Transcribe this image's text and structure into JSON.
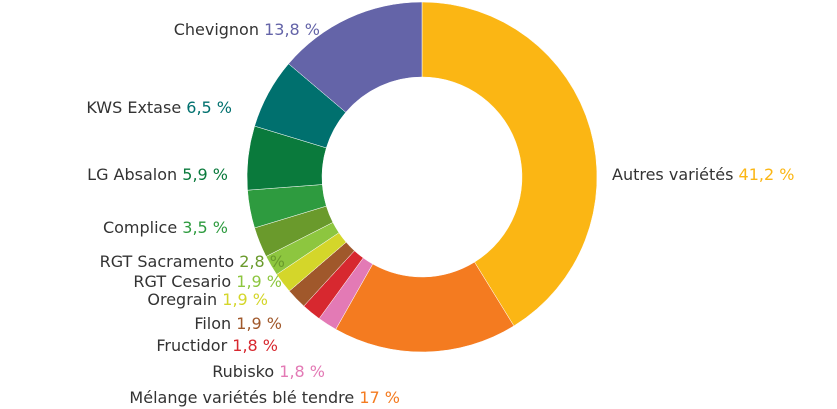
{
  "chart_data": {
    "type": "donut",
    "categories": [
      "Autres variétés",
      "Mélange variétés blé tendre",
      "Rubisko",
      "Fructidor",
      "Filon",
      "Oregrain",
      "RGT Cesario",
      "RGT Sacramento",
      "Complice",
      "LG Absalon",
      "KWS Extase",
      "Chevignon"
    ],
    "values": [
      41.2,
      17,
      1.8,
      1.8,
      1.9,
      1.9,
      1.9,
      2.8,
      3.5,
      5.9,
      6.5,
      13.8
    ],
    "value_labels": [
      "41,2 %",
      "17 %",
      "1,8 %",
      "1,8 %",
      "1,9 %",
      "1,9 %",
      "1,9 %",
      "2,8 %",
      "3,5 %",
      "5,9 %",
      "6,5 %",
      "13,8 %"
    ],
    "colors": [
      "#fbb614",
      "#f47b20",
      "#e37ab5",
      "#d7282f",
      "#a0582b",
      "#d4d62a",
      "#8dc63f",
      "#6a9a2c",
      "#2e9b3f",
      "#0a7a3c",
      "#00706e",
      "#6464a8"
    ]
  }
}
